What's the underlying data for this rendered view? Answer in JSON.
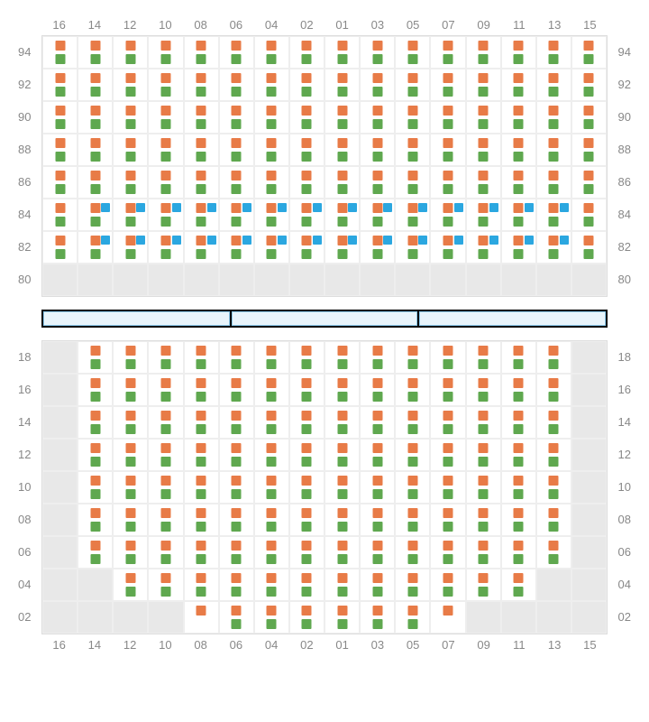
{
  "columns": [
    "16",
    "14",
    "12",
    "10",
    "08",
    "06",
    "04",
    "02",
    "01",
    "03",
    "05",
    "07",
    "09",
    "11",
    "13",
    "15"
  ],
  "colors": {
    "orange": "#e87b47",
    "green": "#5fa84f",
    "blue": "#2ba7e0",
    "empty": "#e8e8e8",
    "grid": "#eee",
    "label": "#888"
  },
  "dividerSegments": 3,
  "upper": {
    "rowLabels": [
      "94",
      "92",
      "90",
      "88",
      "86",
      "84",
      "82",
      "80"
    ],
    "rows": [
      [
        "og",
        "og",
        "og",
        "og",
        "og",
        "og",
        "og",
        "og",
        "og",
        "og",
        "og",
        "og",
        "og",
        "og",
        "og",
        "og"
      ],
      [
        "og",
        "og",
        "og",
        "og",
        "og",
        "og",
        "og",
        "og",
        "og",
        "og",
        "og",
        "og",
        "og",
        "og",
        "og",
        "og"
      ],
      [
        "og",
        "og",
        "og",
        "og",
        "og",
        "og",
        "og",
        "og",
        "og",
        "og",
        "og",
        "og",
        "og",
        "og",
        "og",
        "og"
      ],
      [
        "og",
        "og",
        "og",
        "og",
        "og",
        "og",
        "og",
        "og",
        "og",
        "og",
        "og",
        "og",
        "og",
        "og",
        "og",
        "og"
      ],
      [
        "og",
        "og",
        "og",
        "og",
        "og",
        "og",
        "og",
        "og",
        "og",
        "og",
        "og",
        "og",
        "og",
        "og",
        "og",
        "og"
      ],
      [
        "og",
        "ogb",
        "ogb",
        "ogb",
        "ogb",
        "ogb",
        "ogb",
        "ogb",
        "ogb",
        "ogb",
        "ogb",
        "ogb",
        "ogb",
        "ogb",
        "ogb",
        "og"
      ],
      [
        "og",
        "ogb",
        "ogb",
        "ogb",
        "ogb",
        "ogb",
        "ogb",
        "ogb",
        "ogb",
        "ogb",
        "ogb",
        "ogb",
        "ogb",
        "ogb",
        "ogb",
        "og"
      ],
      [
        "e",
        "e",
        "e",
        "e",
        "e",
        "e",
        "e",
        "e",
        "e",
        "e",
        "e",
        "e",
        "e",
        "e",
        "e",
        "e"
      ]
    ]
  },
  "lower": {
    "rowLabels": [
      "18",
      "16",
      "14",
      "12",
      "10",
      "08",
      "06",
      "04",
      "02"
    ],
    "rows": [
      [
        "e",
        "og",
        "og",
        "og",
        "og",
        "og",
        "og",
        "og",
        "og",
        "og",
        "og",
        "og",
        "og",
        "og",
        "og",
        "e"
      ],
      [
        "e",
        "og",
        "og",
        "og",
        "og",
        "og",
        "og",
        "og",
        "og",
        "og",
        "og",
        "og",
        "og",
        "og",
        "og",
        "e"
      ],
      [
        "e",
        "og",
        "og",
        "og",
        "og",
        "og",
        "og",
        "og",
        "og",
        "og",
        "og",
        "og",
        "og",
        "og",
        "og",
        "e"
      ],
      [
        "e",
        "og",
        "og",
        "og",
        "og",
        "og",
        "og",
        "og",
        "og",
        "og",
        "og",
        "og",
        "og",
        "og",
        "og",
        "e"
      ],
      [
        "e",
        "og",
        "og",
        "og",
        "og",
        "og",
        "og",
        "og",
        "og",
        "og",
        "og",
        "og",
        "og",
        "og",
        "og",
        "e"
      ],
      [
        "e",
        "og",
        "og",
        "og",
        "og",
        "og",
        "og",
        "og",
        "og",
        "og",
        "og",
        "og",
        "og",
        "og",
        "og",
        "e"
      ],
      [
        "e",
        "og",
        "og",
        "og",
        "og",
        "og",
        "og",
        "og",
        "og",
        "og",
        "og",
        "og",
        "og",
        "og",
        "og",
        "e"
      ],
      [
        "e",
        "e",
        "og",
        "og",
        "og",
        "og",
        "og",
        "og",
        "og",
        "og",
        "og",
        "og",
        "og",
        "og",
        "e",
        "e"
      ],
      [
        "e",
        "e",
        "e",
        "e",
        "o",
        "og",
        "og",
        "og",
        "og",
        "og",
        "og",
        "o",
        "e",
        "e",
        "e",
        "e"
      ]
    ]
  }
}
